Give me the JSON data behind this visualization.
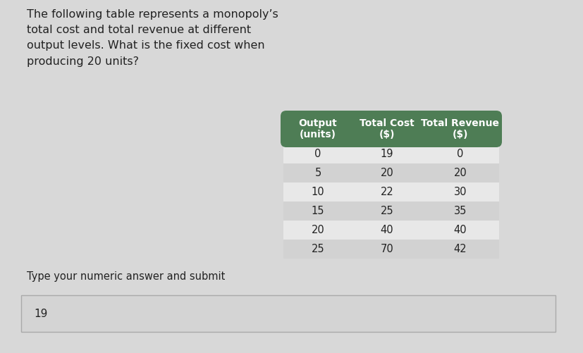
{
  "question_text": "The following table represents a monopoly’s\ntotal cost and total revenue at different\noutput levels. What is the fixed cost when\nproducing 20 units?",
  "prompt_text": "Type your numeric answer and submit",
  "answer_text": "19",
  "table_headers": [
    "Output\n(units)",
    "Total Cost\n($)",
    "Total Revenue\n($)"
  ],
  "table_data": [
    [
      "0",
      "19",
      "0"
    ],
    [
      "5",
      "20",
      "20"
    ],
    [
      "10",
      "22",
      "30"
    ],
    [
      "15",
      "25",
      "35"
    ],
    [
      "20",
      "40",
      "40"
    ],
    [
      "25",
      "70",
      "42"
    ]
  ],
  "header_bg_color": "#4e7d55",
  "header_text_color": "#ffffff",
  "row_odd_bg": "#e8e8e8",
  "row_even_bg": "#d2d2d2",
  "page_bg_color": "#d8d8d8",
  "answer_box_bg": "#d4d4d4",
  "answer_box_border": "#aaaaaa",
  "text_color": "#222222",
  "font_size_question": 11.5,
  "font_size_table_header": 10,
  "font_size_table_data": 10.5,
  "font_size_prompt": 10.5,
  "font_size_answer": 11
}
